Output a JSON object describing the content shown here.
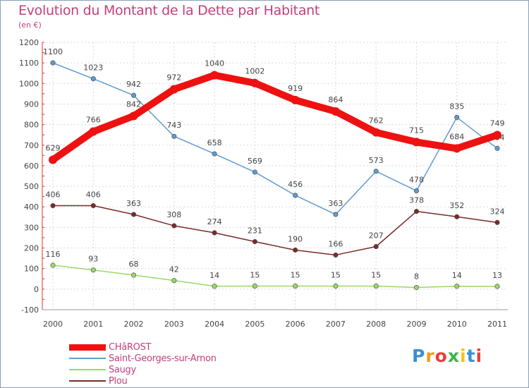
{
  "title": "Evolution du Montant de la Dette par Habitant",
  "subtitle": "(en €)",
  "logo": {
    "text": "Proxiti",
    "letters": [
      {
        "ch": "P",
        "color": "#3a8fd6"
      },
      {
        "ch": "r",
        "color": "#f39a1e"
      },
      {
        "ch": "o",
        "color": "#e8403a"
      },
      {
        "ch": "x",
        "color": "#3ab54a"
      },
      {
        "ch": "i",
        "color": "#f3c21e"
      },
      {
        "ch": "t",
        "color": "#3a8fd6"
      },
      {
        "ch": "i",
        "color": "#e8403a"
      }
    ]
  },
  "chart_data": {
    "type": "line",
    "title": "Evolution du Montant de la Dette par Habitant",
    "subtitle": "(en €)",
    "xlabel": "",
    "ylabel": "",
    "x": [
      "2000",
      "2001",
      "2002",
      "2003",
      "2004",
      "2005",
      "2006",
      "2007",
      "2008",
      "2009",
      "2010",
      "2011"
    ],
    "ylim": [
      -100,
      1200
    ],
    "yticks": [
      "-100",
      "0",
      "100",
      "200",
      "300",
      "400",
      "500",
      "600",
      "700",
      "800",
      "900",
      "1000",
      "1100",
      "1200"
    ],
    "grid": true,
    "legend_position": "bottom-left",
    "series": [
      {
        "name": "CHâROST",
        "color": "#ee1111",
        "values": [
          629,
          766,
          842,
          972,
          1040,
          1002,
          919,
          864,
          762,
          715,
          684,
          749
        ],
        "labels": [
          "629",
          "766",
          "842",
          "972",
          "1040",
          "1002",
          "919",
          "864",
          "762",
          "715",
          "684",
          "749"
        ]
      },
      {
        "name": "Saint-Georges-sur-Arnon",
        "color": "#5f9bd0",
        "values": [
          1100,
          1023,
          942,
          743,
          658,
          569,
          456,
          363,
          573,
          478,
          835,
          684
        ],
        "labels": [
          "1100",
          "1023",
          "942",
          "743",
          "658",
          "569",
          "456",
          "363",
          "573",
          "478",
          "835",
          "684"
        ]
      },
      {
        "name": "Saugy",
        "color": "#9ad86a",
        "values": [
          116,
          93,
          68,
          42,
          14,
          15,
          15,
          15,
          15,
          8,
          14,
          13
        ],
        "labels": [
          "116",
          "93",
          "68",
          "42",
          "14",
          "15",
          "15",
          "15",
          "15",
          "8",
          "14",
          "13"
        ]
      },
      {
        "name": "Plou",
        "color": "#7a2a2a",
        "values": [
          406,
          406,
          363,
          308,
          274,
          231,
          190,
          166,
          207,
          378,
          352,
          324
        ],
        "labels": [
          "406",
          "406",
          "363",
          "308",
          "274",
          "231",
          "190",
          "166",
          "207",
          "378",
          "352",
          "324"
        ]
      }
    ]
  }
}
